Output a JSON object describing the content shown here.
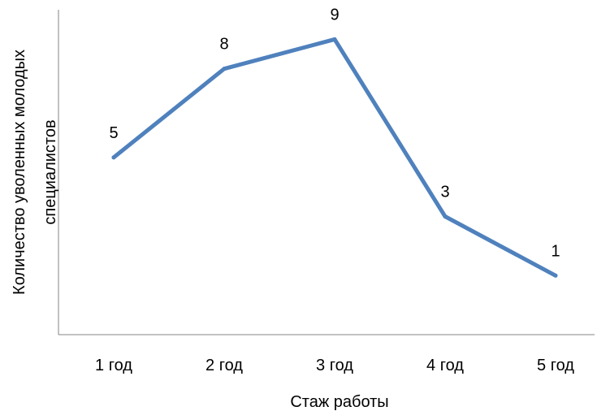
{
  "chart_data": {
    "type": "line",
    "categories": [
      "1 год",
      "2 год",
      "3 год",
      "4 год",
      "5 год"
    ],
    "series": [
      {
        "values": [
          5,
          8,
          9,
          3,
          1
        ],
        "color": "#4f81bd"
      }
    ],
    "data_labels": [
      "5",
      "8",
      "9",
      "3",
      "1"
    ],
    "xlabel": "Стаж работы",
    "ylabel_lines": [
      "Количество уволенных молодых",
      "специалистов"
    ],
    "ylim": [
      -1,
      10
    ],
    "y_axis_ticks": false,
    "grid": false,
    "legend": "none"
  }
}
